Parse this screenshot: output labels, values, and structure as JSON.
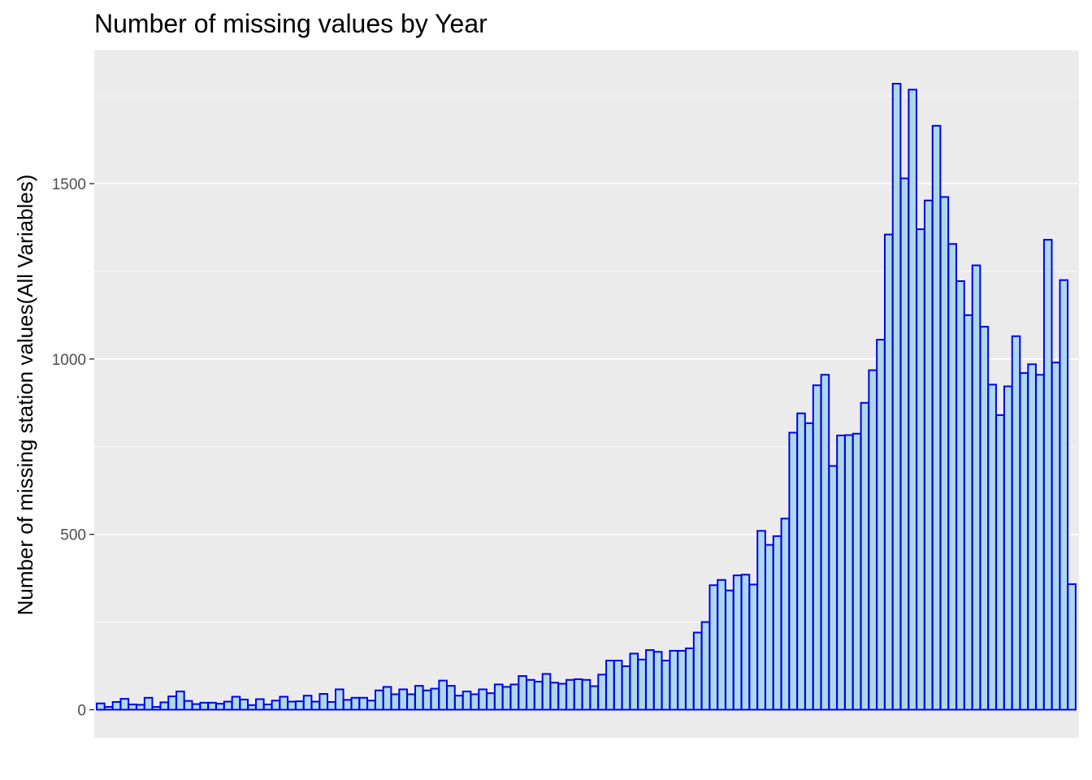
{
  "chart_data": {
    "type": "bar",
    "title": "Number of missing values by Year",
    "xlabel": "",
    "ylabel": "Number of missing station values(All Variables)",
    "ylim": [
      -80,
      1880
    ],
    "yticks": [
      0,
      500,
      1000,
      1500
    ],
    "grid": true,
    "legend": "none",
    "bar_fill": "#add8e6",
    "bar_stroke": "#0000ee",
    "panel_background": "#ebebeb",
    "values": [
      18,
      8,
      22,
      31,
      15,
      14,
      34,
      8,
      21,
      38,
      52,
      25,
      16,
      20,
      20,
      17,
      23,
      37,
      29,
      13,
      30,
      15,
      26,
      37,
      23,
      24,
      40,
      23,
      45,
      22,
      58,
      28,
      34,
      34,
      26,
      55,
      65,
      44,
      58,
      44,
      68,
      55,
      60,
      83,
      68,
      40,
      52,
      44,
      58,
      47,
      72,
      65,
      72,
      96,
      85,
      80,
      102,
      77,
      74,
      85,
      87,
      85,
      67,
      100,
      140,
      140,
      124,
      160,
      143,
      170,
      165,
      140,
      168,
      168,
      175,
      220,
      250,
      355,
      370,
      340,
      383,
      385,
      357,
      510,
      470,
      495,
      545,
      790,
      845,
      817,
      925,
      955,
      695,
      782,
      783,
      787,
      875,
      968,
      1055,
      1355,
      1785,
      1515,
      1768,
      1370,
      1452,
      1665,
      1462,
      1328,
      1222,
      1125,
      1267,
      1092,
      927,
      840,
      922,
      1065,
      960,
      985,
      955,
      1340,
      990,
      1225,
      358
    ]
  }
}
